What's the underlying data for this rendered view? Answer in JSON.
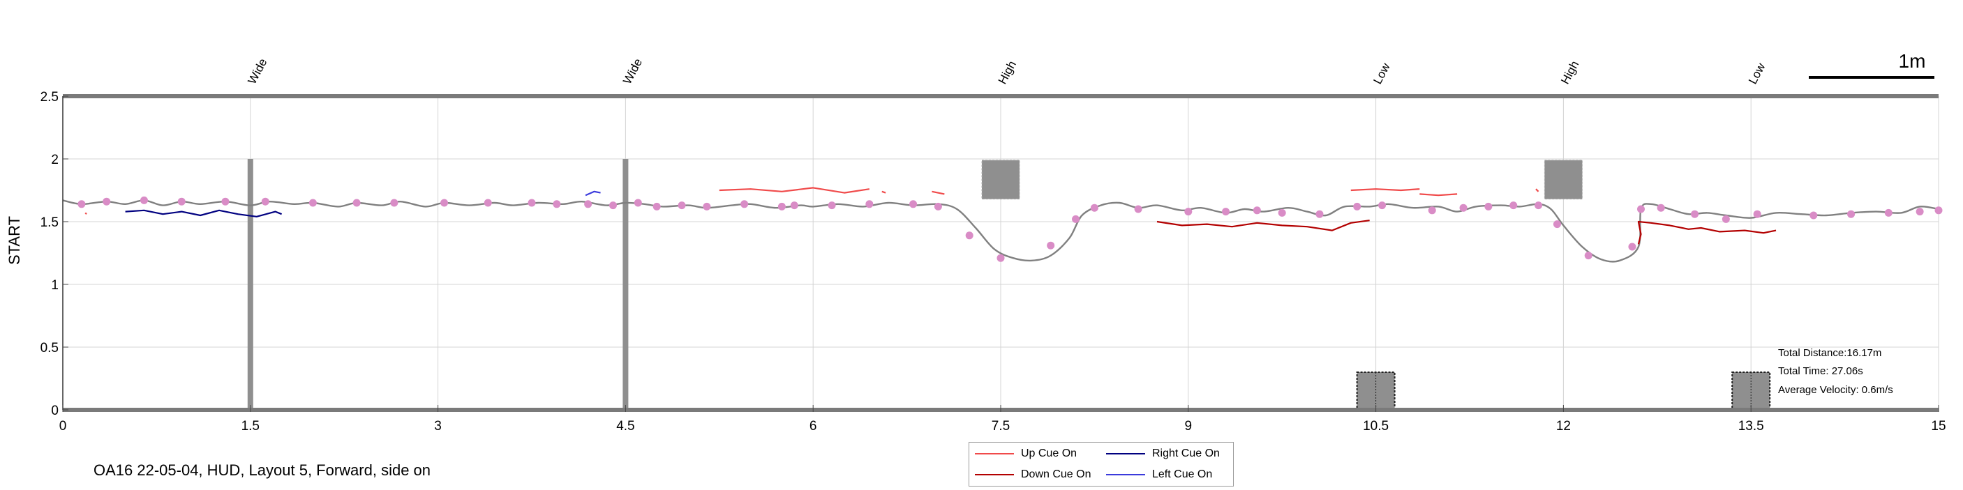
{
  "caption": "OA16 22-05-04, HUD, Layout 5, Forward, side on",
  "chart_data": {
    "type": "line",
    "ylabel": "START",
    "xlim": [
      0,
      15
    ],
    "ylim": [
      0,
      2.5
    ],
    "xticks": [
      0,
      1.5,
      3,
      4.5,
      6,
      7.5,
      9,
      10.5,
      12,
      13.5,
      15
    ],
    "xtick_labels": [
      "0",
      "1.5",
      "3",
      "4.5",
      "6",
      "7.5",
      "9",
      "10.5",
      "12",
      "13.5",
      "15"
    ],
    "yticks": [
      0,
      0.5,
      1,
      1.5,
      2,
      2.5
    ],
    "ytick_labels": [
      "0",
      "0.5",
      "1",
      "1.5",
      "2",
      "2.5"
    ],
    "grid": true,
    "scale_bar": {
      "label": "1m",
      "length": 1
    },
    "obstacles": [
      {
        "label": "Wide",
        "x": 1.5,
        "kind": "post"
      },
      {
        "label": "Wide",
        "x": 4.5,
        "kind": "post"
      },
      {
        "label": "High",
        "x": 7.5,
        "kind": "high-box"
      },
      {
        "label": "Low",
        "x": 10.5,
        "kind": "low-box"
      },
      {
        "label": "High",
        "x": 12,
        "kind": "high-box"
      },
      {
        "label": "Low",
        "x": 13.5,
        "kind": "low-box"
      }
    ],
    "stats": {
      "distance": "Total Distance:16.17m",
      "time": "Total Time: 27.06s",
      "velocity": "Average Velocity: 0.6m/s"
    },
    "colors": {
      "path": "#808080",
      "marker": "#d98cc6",
      "up": "#f04a4a",
      "down": "#b30000",
      "right": "#000080",
      "left": "#3b3bdc",
      "obstacle": "#8f8f8f",
      "grid": "#d4d4d4"
    },
    "series": [
      {
        "name": "Up Cue On",
        "color": "#f04a4a",
        "segments": [
          [
            [
              0.18,
              1.57
            ],
            [
              0.19,
              1.56
            ]
          ],
          [
            [
              5.25,
              1.75
            ],
            [
              5.5,
              1.76
            ],
            [
              5.75,
              1.74
            ],
            [
              6.0,
              1.77
            ],
            [
              6.25,
              1.73
            ],
            [
              6.45,
              1.76
            ]
          ],
          [
            [
              6.55,
              1.74
            ],
            [
              6.58,
              1.73
            ]
          ],
          [
            [
              6.95,
              1.74
            ],
            [
              7.05,
              1.72
            ]
          ],
          [
            [
              10.3,
              1.75
            ],
            [
              10.5,
              1.76
            ],
            [
              10.7,
              1.75
            ],
            [
              10.85,
              1.76
            ]
          ],
          [
            [
              10.85,
              1.72
            ],
            [
              11.0,
              1.71
            ],
            [
              11.15,
              1.72
            ]
          ],
          [
            [
              11.78,
              1.76
            ],
            [
              11.8,
              1.74
            ]
          ]
        ]
      },
      {
        "name": "Right Cue On",
        "color": "#000080",
        "segments": [
          [
            [
              0.5,
              1.58
            ],
            [
              0.65,
              1.59
            ],
            [
              0.8,
              1.56
            ],
            [
              0.95,
              1.58
            ],
            [
              1.1,
              1.55
            ],
            [
              1.25,
              1.59
            ],
            [
              1.4,
              1.56
            ],
            [
              1.55,
              1.54
            ],
            [
              1.7,
              1.58
            ],
            [
              1.75,
              1.56
            ]
          ]
        ]
      },
      {
        "name": "Down Cue On",
        "color": "#b30000",
        "segments": [
          [
            [
              8.75,
              1.5
            ],
            [
              8.95,
              1.47
            ],
            [
              9.15,
              1.48
            ],
            [
              9.35,
              1.46
            ],
            [
              9.55,
              1.49
            ],
            [
              9.75,
              1.47
            ],
            [
              9.95,
              1.46
            ],
            [
              10.15,
              1.43
            ],
            [
              10.3,
              1.49
            ],
            [
              10.45,
              1.51
            ]
          ],
          [
            [
              12.6,
              1.32
            ],
            [
              12.62,
              1.4
            ],
            [
              12.6,
              1.5
            ],
            [
              12.7,
              1.49
            ],
            [
              12.85,
              1.47
            ],
            [
              13.0,
              1.44
            ],
            [
              13.1,
              1.45
            ],
            [
              13.25,
              1.42
            ],
            [
              13.45,
              1.43
            ],
            [
              13.6,
              1.41
            ],
            [
              13.7,
              1.43
            ]
          ]
        ]
      },
      {
        "name": "Left Cue On",
        "color": "#3b3bdc",
        "segments": [
          [
            [
              4.18,
              1.71
            ],
            [
              4.25,
              1.74
            ],
            [
              4.3,
              1.73
            ]
          ]
        ]
      }
    ],
    "path": [
      [
        0.0,
        1.67
      ],
      [
        0.15,
        1.64
      ],
      [
        0.35,
        1.66
      ],
      [
        0.5,
        1.64
      ],
      [
        0.65,
        1.67
      ],
      [
        0.8,
        1.63
      ],
      [
        0.95,
        1.66
      ],
      [
        1.1,
        1.64
      ],
      [
        1.3,
        1.66
      ],
      [
        1.5,
        1.63
      ],
      [
        1.65,
        1.66
      ],
      [
        1.85,
        1.64
      ],
      [
        2.0,
        1.65
      ],
      [
        2.2,
        1.62
      ],
      [
        2.35,
        1.65
      ],
      [
        2.55,
        1.63
      ],
      [
        2.7,
        1.66
      ],
      [
        2.9,
        1.62
      ],
      [
        3.05,
        1.65
      ],
      [
        3.25,
        1.63
      ],
      [
        3.45,
        1.65
      ],
      [
        3.6,
        1.63
      ],
      [
        3.8,
        1.65
      ],
      [
        4.0,
        1.64
      ],
      [
        4.15,
        1.66
      ],
      [
        4.35,
        1.63
      ],
      [
        4.5,
        1.65
      ],
      [
        4.65,
        1.64
      ],
      [
        4.8,
        1.62
      ],
      [
        5.0,
        1.63
      ],
      [
        5.15,
        1.61
      ],
      [
        5.35,
        1.63
      ],
      [
        5.5,
        1.64
      ],
      [
        5.7,
        1.61
      ],
      [
        5.9,
        1.63
      ],
      [
        6.0,
        1.62
      ],
      [
        6.2,
        1.64
      ],
      [
        6.4,
        1.62
      ],
      [
        6.6,
        1.65
      ],
      [
        6.8,
        1.63
      ],
      [
        7.0,
        1.64
      ],
      [
        7.15,
        1.6
      ],
      [
        7.3,
        1.45
      ],
      [
        7.45,
        1.28
      ],
      [
        7.6,
        1.21
      ],
      [
        7.75,
        1.19
      ],
      [
        7.9,
        1.23
      ],
      [
        8.05,
        1.37
      ],
      [
        8.15,
        1.55
      ],
      [
        8.3,
        1.63
      ],
      [
        8.45,
        1.65
      ],
      [
        8.6,
        1.61
      ],
      [
        8.75,
        1.63
      ],
      [
        8.95,
        1.59
      ],
      [
        9.1,
        1.61
      ],
      [
        9.3,
        1.57
      ],
      [
        9.45,
        1.6
      ],
      [
        9.6,
        1.58
      ],
      [
        9.8,
        1.61
      ],
      [
        9.95,
        1.58
      ],
      [
        10.1,
        1.55
      ],
      [
        10.25,
        1.62
      ],
      [
        10.45,
        1.62
      ],
      [
        10.6,
        1.64
      ],
      [
        10.8,
        1.61
      ],
      [
        11.0,
        1.62
      ],
      [
        11.15,
        1.58
      ],
      [
        11.3,
        1.62
      ],
      [
        11.5,
        1.63
      ],
      [
        11.65,
        1.62
      ],
      [
        11.8,
        1.64
      ],
      [
        11.9,
        1.6
      ],
      [
        12.0,
        1.47
      ],
      [
        12.15,
        1.3
      ],
      [
        12.3,
        1.2
      ],
      [
        12.45,
        1.19
      ],
      [
        12.6,
        1.3
      ],
      [
        12.62,
        1.6
      ],
      [
        12.7,
        1.64
      ],
      [
        12.85,
        1.6
      ],
      [
        13.0,
        1.56
      ],
      [
        13.15,
        1.57
      ],
      [
        13.3,
        1.55
      ],
      [
        13.5,
        1.53
      ],
      [
        13.7,
        1.57
      ],
      [
        13.9,
        1.56
      ],
      [
        14.1,
        1.55
      ],
      [
        14.3,
        1.57
      ],
      [
        14.5,
        1.58
      ],
      [
        14.7,
        1.57
      ],
      [
        14.85,
        1.62
      ],
      [
        15.0,
        1.6
      ]
    ],
    "markers": [
      [
        0.15,
        1.64
      ],
      [
        0.35,
        1.66
      ],
      [
        0.65,
        1.67
      ],
      [
        0.95,
        1.66
      ],
      [
        1.3,
        1.66
      ],
      [
        1.62,
        1.66
      ],
      [
        2.0,
        1.65
      ],
      [
        2.35,
        1.65
      ],
      [
        2.65,
        1.65
      ],
      [
        3.05,
        1.65
      ],
      [
        3.4,
        1.65
      ],
      [
        3.75,
        1.65
      ],
      [
        3.95,
        1.64
      ],
      [
        4.2,
        1.64
      ],
      [
        4.4,
        1.63
      ],
      [
        4.6,
        1.65
      ],
      [
        4.75,
        1.62
      ],
      [
        4.95,
        1.63
      ],
      [
        5.15,
        1.62
      ],
      [
        5.45,
        1.64
      ],
      [
        5.75,
        1.62
      ],
      [
        5.85,
        1.63
      ],
      [
        6.15,
        1.63
      ],
      [
        6.45,
        1.64
      ],
      [
        6.8,
        1.64
      ],
      [
        7.0,
        1.62
      ],
      [
        7.25,
        1.39
      ],
      [
        7.5,
        1.21
      ],
      [
        7.9,
        1.31
      ],
      [
        8.1,
        1.52
      ],
      [
        8.25,
        1.61
      ],
      [
        8.6,
        1.6
      ],
      [
        9.0,
        1.58
      ],
      [
        9.3,
        1.58
      ],
      [
        9.55,
        1.59
      ],
      [
        9.75,
        1.57
      ],
      [
        10.05,
        1.56
      ],
      [
        10.35,
        1.62
      ],
      [
        10.55,
        1.63
      ],
      [
        10.95,
        1.59
      ],
      [
        11.2,
        1.61
      ],
      [
        11.4,
        1.62
      ],
      [
        11.6,
        1.63
      ],
      [
        11.8,
        1.63
      ],
      [
        11.95,
        1.48
      ],
      [
        12.2,
        1.23
      ],
      [
        12.55,
        1.3
      ],
      [
        12.62,
        1.6
      ],
      [
        12.78,
        1.61
      ],
      [
        13.05,
        1.56
      ],
      [
        13.3,
        1.52
      ],
      [
        13.55,
        1.56
      ],
      [
        14.0,
        1.55
      ],
      [
        14.3,
        1.56
      ],
      [
        14.6,
        1.57
      ],
      [
        14.85,
        1.58
      ],
      [
        15.0,
        1.59
      ]
    ]
  },
  "legend": {
    "up": "Up Cue On",
    "right": "Right Cue On",
    "down": "Down Cue On",
    "left": "Left Cue On"
  }
}
